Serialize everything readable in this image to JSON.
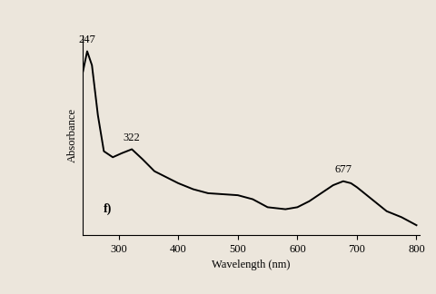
{
  "chart_data": {
    "type": "line",
    "x_label": "Wavelength (nm)",
    "y_label": "Absorbance",
    "panel_label": "f)",
    "x": [
      240,
      247,
      255,
      265,
      275,
      290,
      305,
      322,
      340,
      360,
      380,
      400,
      425,
      450,
      475,
      500,
      525,
      550,
      580,
      600,
      620,
      640,
      660,
      677,
      690,
      700,
      725,
      750,
      775,
      800
    ],
    "values": [
      0.82,
      0.92,
      0.85,
      0.6,
      0.42,
      0.39,
      0.41,
      0.43,
      0.38,
      0.32,
      0.29,
      0.26,
      0.23,
      0.21,
      0.205,
      0.2,
      0.18,
      0.14,
      0.13,
      0.14,
      0.17,
      0.21,
      0.25,
      0.27,
      0.26,
      0.24,
      0.18,
      0.12,
      0.09,
      0.05
    ],
    "color": "#000000",
    "annotations": [
      {
        "text": "247",
        "x": 247
      },
      {
        "text": "322",
        "x": 322
      },
      {
        "text": "677",
        "x": 677
      }
    ],
    "xlim": [
      240,
      805
    ],
    "xticks": [
      300,
      400,
      500,
      600,
      700,
      800
    ],
    "ylim": [
      0,
      1
    ],
    "yticks": [],
    "tick_labels": "x",
    "grid": false
  }
}
